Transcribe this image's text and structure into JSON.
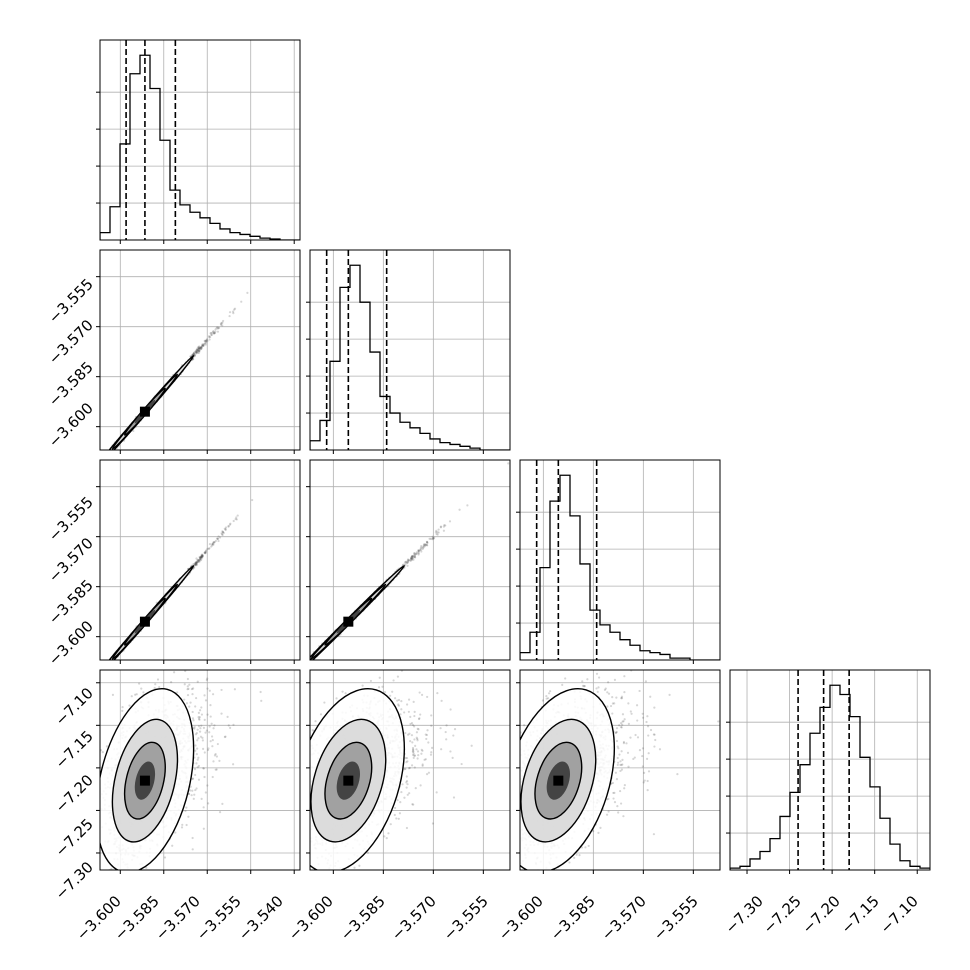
{
  "chart_data": {
    "type": "corner",
    "variables": [
      {
        "range": [
          -3.607,
          -3.538
        ],
        "ticks": [
          -3.6,
          -3.585,
          -3.57,
          -3.555,
          -3.54
        ],
        "tick_labels": [
          "−3.600",
          "−3.585",
          "−3.570",
          "−3.555",
          "−3.540"
        ],
        "quantiles": [
          -3.598,
          -3.5915,
          -3.581
        ]
      },
      {
        "range": [
          -3.607,
          -3.547
        ],
        "ticks": [
          -3.6,
          -3.585,
          -3.57,
          -3.555
        ],
        "tick_labels": [
          "−3.600",
          "−3.585",
          "−3.570",
          "−3.555"
        ],
        "quantiles": [
          -3.602,
          -3.5955,
          -3.584
        ]
      },
      {
        "range": [
          -3.607,
          -3.547
        ],
        "ticks": [
          -3.6,
          -3.585,
          -3.57,
          -3.555
        ],
        "tick_labels": [
          "−3.600",
          "−3.585",
          "−3.570",
          "−3.555"
        ],
        "quantiles": [
          -3.602,
          -3.5955,
          -3.584
        ]
      },
      {
        "range": [
          -7.32,
          -7.085
        ],
        "ticks": [
          -7.3,
          -7.25,
          -7.2,
          -7.15,
          -7.1
        ],
        "tick_labels": [
          "−7.30",
          "−7.25",
          "−7.20",
          "−7.15",
          "−7.10"
        ],
        "quantiles": [
          -7.24,
          -7.21,
          -7.18
        ]
      }
    ],
    "histograms": [
      [
        0.04,
        0.18,
        0.52,
        0.9,
        1.0,
        0.82,
        0.54,
        0.27,
        0.19,
        0.15,
        0.12,
        0.09,
        0.06,
        0.04,
        0.03,
        0.02,
        0.01,
        0.005,
        0.0,
        0.0
      ],
      [
        0.05,
        0.16,
        0.48,
        0.88,
        1.0,
        0.8,
        0.53,
        0.29,
        0.2,
        0.15,
        0.12,
        0.09,
        0.06,
        0.04,
        0.03,
        0.02,
        0.01,
        0.0,
        0.0,
        0.0
      ],
      [
        0.04,
        0.15,
        0.5,
        0.86,
        1.0,
        0.78,
        0.52,
        0.27,
        0.19,
        0.15,
        0.11,
        0.08,
        0.05,
        0.04,
        0.03,
        0.01,
        0.01,
        0.0,
        0.0,
        0.0
      ],
      [
        0.01,
        0.02,
        0.06,
        0.1,
        0.17,
        0.29,
        0.42,
        0.57,
        0.74,
        0.88,
        1.0,
        0.95,
        0.83,
        0.61,
        0.45,
        0.28,
        0.14,
        0.05,
        0.02,
        0.01
      ]
    ],
    "joint_means": [
      -3.5915,
      -3.5955,
      -3.5955,
      -7.215
    ],
    "joint_sd": [
      0.007,
      0.007,
      0.007,
      0.045
    ],
    "correlations": [
      [
        1,
        0.998,
        0.998,
        0.35
      ],
      [
        0.998,
        1,
        0.998,
        0.35
      ],
      [
        0.998,
        0.998,
        1,
        0.35
      ],
      [
        0.35,
        0.35,
        0.35,
        1
      ]
    ],
    "grid": true,
    "scatter_points_per_panel": 1500
  }
}
